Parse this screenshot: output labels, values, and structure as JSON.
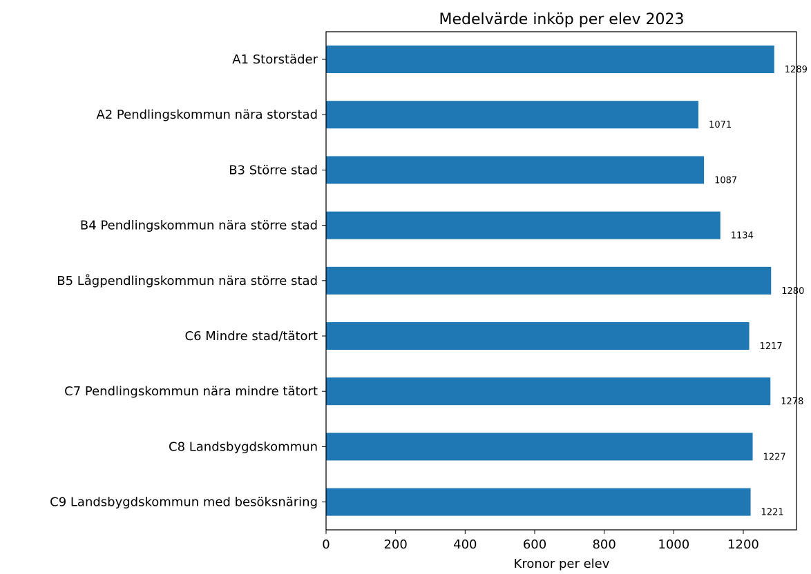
{
  "chart_data": {
    "type": "bar",
    "orientation": "horizontal",
    "title": "Medelvärde inköp per elev 2023",
    "xlabel": "Kronor per elev",
    "ylabel": "",
    "categories": [
      "A1 Storstäder",
      "A2 Pendlingskommun nära storstad",
      "B3 Större stad",
      "B4 Pendlingskommun nära större stad",
      "B5 Lågpendlingskommun nära större stad",
      "C6 Mindre stad/tätort",
      "C7 Pendlingskommun nära mindre tätort",
      "C8 Landsbygdskommun",
      "C9 Landsbygdskommun med besöksnäring"
    ],
    "values": [
      1289,
      1071,
      1087,
      1134,
      1280,
      1217,
      1278,
      1227,
      1221
    ],
    "value_labels": [
      "1289",
      "1071",
      "1087",
      "1134",
      "1280",
      "1217",
      "1278",
      "1227",
      "1221"
    ],
    "xlim": [
      0,
      1353
    ],
    "xticks": [
      0,
      200,
      400,
      600,
      800,
      1000,
      1200
    ],
    "xtick_labels": [
      "0",
      "200",
      "400",
      "600",
      "800",
      "1000",
      "1200"
    ],
    "bar_color": "#1f77b4",
    "grid": false,
    "legend": "none"
  }
}
